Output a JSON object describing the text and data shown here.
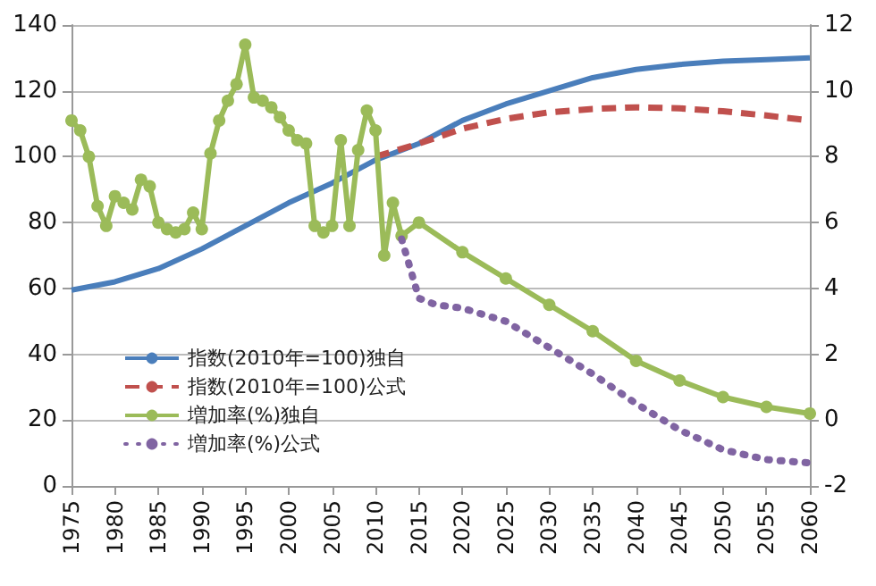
{
  "chart_data": {
    "type": "line",
    "series": [
      {
        "name": "指数(2010年=100)独自",
        "color": "#4a7ebb",
        "line_style": "solid",
        "marker": "none",
        "x": [
          1975,
          1980,
          1985,
          1990,
          1995,
          2000,
          2005,
          2010,
          2015,
          2020,
          2025,
          2030,
          2035,
          2040,
          2045,
          2050,
          2055,
          2060
        ],
        "values": [
          59.5,
          62,
          66,
          72,
          79,
          86,
          92,
          99,
          104,
          111,
          116,
          120,
          124,
          126.5,
          128,
          129,
          129.5,
          130
        ]
      },
      {
        "name": "指数(2010年=100)公式",
        "color": "#c0504d",
        "line_style": "dashed",
        "marker": "none",
        "x": [
          2010,
          2015,
          2020,
          2025,
          2030,
          2035,
          2040,
          2045,
          2050,
          2055,
          2060
        ],
        "values": [
          100,
          104,
          108.5,
          111.5,
          113.5,
          114.5,
          115,
          114.7,
          113.8,
          112.5,
          111
        ]
      },
      {
        "name": "増加率(%)独自",
        "color": "#9bbb59",
        "line_style": "solid",
        "marker": "circle",
        "axis": "y2",
        "x": [
          1975,
          1976,
          1977,
          1978,
          1979,
          1980,
          1981,
          1982,
          1983,
          1984,
          1985,
          1986,
          1987,
          1988,
          1989,
          1990,
          1991,
          1992,
          1993,
          1994,
          1995,
          1996,
          1997,
          1998,
          1999,
          2000,
          2001,
          2002,
          2003,
          2004,
          2005,
          2006,
          2007,
          2008,
          2009,
          2010,
          2011,
          2012,
          2013,
          2015,
          2020,
          2025,
          2030,
          2035,
          2040,
          2045,
          2050,
          2055,
          2060
        ],
        "values": [
          9.1,
          8.8,
          8.0,
          6.5,
          5.9,
          6.8,
          6.6,
          6.4,
          7.3,
          7.1,
          6.0,
          5.8,
          5.7,
          5.8,
          6.3,
          5.8,
          8.1,
          9.1,
          9.7,
          10.2,
          11.4,
          9.8,
          9.7,
          9.5,
          9.2,
          8.8,
          8.5,
          8.4,
          5.9,
          5.7,
          5.9,
          8.5,
          5.9,
          8.2,
          9.4,
          8.8,
          5.0,
          6.6,
          5.6,
          6.0,
          5.1,
          4.3,
          3.5,
          2.7,
          1.8,
          1.2,
          0.7,
          0.4,
          0.2
        ]
      },
      {
        "name": "増加率(%)公式",
        "color": "#8064a2",
        "line_style": "dotted",
        "marker": "none",
        "axis": "y2",
        "x": [
          2013,
          2014,
          2015,
          2017,
          2020,
          2025,
          2030,
          2035,
          2040,
          2045,
          2050,
          2055,
          2060
        ],
        "values": [
          5.5,
          4.6,
          3.7,
          3.5,
          3.4,
          3.0,
          2.2,
          1.4,
          0.5,
          -0.3,
          -0.9,
          -1.2,
          -1.3
        ]
      }
    ],
    "xlim": [
      1975,
      2060
    ],
    "xticks": [
      1975,
      1980,
      1985,
      1990,
      1995,
      2000,
      2005,
      2010,
      2015,
      2020,
      2025,
      2030,
      2035,
      2040,
      2045,
      2050,
      2055,
      2060
    ],
    "ylim": [
      0,
      140
    ],
    "yticks": [
      0,
      20,
      40,
      60,
      80,
      100,
      120,
      140
    ],
    "y2lim": [
      -2,
      12
    ],
    "y2ticks": [
      -2,
      0,
      2,
      4,
      6,
      8,
      10,
      12
    ],
    "grid": "y",
    "legend": "bottom left"
  }
}
